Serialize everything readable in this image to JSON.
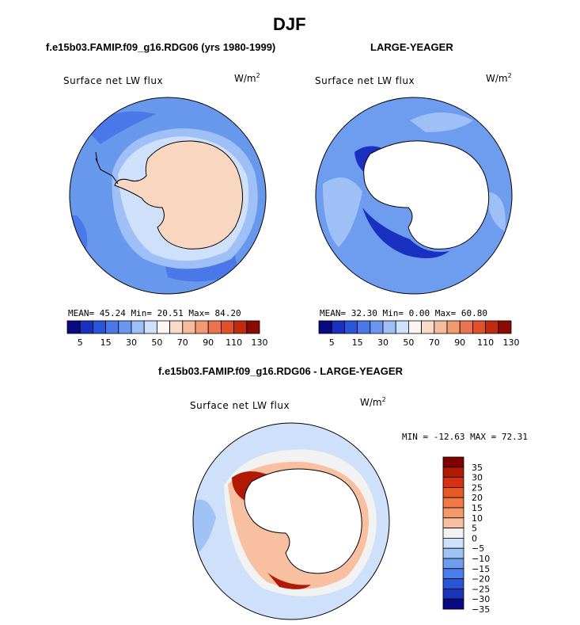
{
  "page": {
    "title": "DJF",
    "left_title": "f.e15b03.FAMIP.f09_g16.RDG06 (yrs 1980-1999)",
    "right_title": "LARGE-YEAGER",
    "diff_title": "f.e15b03.FAMIP.f09_g16.RDG06 - LARGE-YEAGER"
  },
  "panels": {
    "p1": {
      "variable": "Surface net LW flux",
      "units": "W/m",
      "units_exp": "2"
    },
    "p2": {
      "variable": "Surface net LW flux",
      "units": "W/m",
      "units_exp": "2"
    },
    "p3": {
      "variable": "Surface net LW flux",
      "units": "W/m",
      "units_exp": "2"
    }
  },
  "stats": {
    "p1": {
      "mean_label": "MEAN=",
      "mean": "45.24",
      "min_label": "Min=",
      "min": "20.51",
      "max_label": "Max=",
      "max": "84.20"
    },
    "p2": {
      "mean_label": "MEAN=",
      "mean": "32.30",
      "min_label": "Min=",
      "min": "0.00",
      "max_label": "Max=",
      "max": "60.80"
    },
    "p3": {
      "text": "MIN = -12.63 MAX =  72.31"
    }
  },
  "chart_data": [
    {
      "type": "heatmap",
      "projection": "south-polar-stereographic",
      "title": "f.e15b03.FAMIP.f09_g16.RDG06 (yrs 1980-1999)",
      "variable": "Surface net LW flux",
      "units": "W/m2",
      "mean": 45.24,
      "min": 20.51,
      "max": 84.2,
      "colorbar_levels": [
        5,
        10,
        15,
        20,
        30,
        40,
        50,
        60,
        70,
        80,
        90,
        100,
        110,
        120,
        130
      ],
      "colorbar_tick_labels": [
        "5",
        "15",
        "30",
        "50",
        "70",
        "90",
        "110",
        "130"
      ]
    },
    {
      "type": "heatmap",
      "projection": "south-polar-stereographic",
      "title": "LARGE-YEAGER",
      "variable": "Surface net LW flux",
      "units": "W/m2",
      "mean": 32.3,
      "min": 0.0,
      "max": 60.8,
      "colorbar_levels": [
        5,
        10,
        15,
        20,
        30,
        40,
        50,
        60,
        70,
        80,
        90,
        100,
        110,
        120,
        130
      ],
      "colorbar_tick_labels": [
        "5",
        "15",
        "30",
        "50",
        "70",
        "90",
        "110",
        "130"
      ]
    },
    {
      "type": "heatmap",
      "projection": "south-polar-stereographic",
      "title": "f.e15b03.FAMIP.f09_g16.RDG06 - LARGE-YEAGER",
      "variable": "Surface net LW flux",
      "units": "W/m2",
      "min": -12.63,
      "max": 72.31,
      "colorbar_levels": [
        35,
        30,
        25,
        20,
        15,
        10,
        5,
        0,
        -5,
        -10,
        -15,
        -20,
        -25,
        -30,
        -35
      ],
      "colorbar_tick_labels": [
        "35",
        "30",
        "25",
        "20",
        "15",
        "10",
        "5",
        "0",
        "−5",
        "−10",
        "−15",
        "−20",
        "−25",
        "−30",
        "−35"
      ]
    }
  ],
  "colors": {
    "seq_scale": [
      "#0a0a80",
      "#1a30c0",
      "#2a55d8",
      "#4a78e8",
      "#6a98f0",
      "#9ec0f6",
      "#cfe0fa",
      "#fbf6f2",
      "#f8dcc8",
      "#f5bd9c",
      "#f29a72",
      "#ec744c",
      "#e0502a",
      "#c02a10",
      "#8a0a05"
    ],
    "div_scale": [
      "#800000",
      "#b01a05",
      "#d83010",
      "#e85a25",
      "#f07a45",
      "#f49a6a",
      "#f8c0a0",
      "#f2f2f2",
      "#cfe0fa",
      "#a0c2f5",
      "#6e9cef",
      "#4a7cea",
      "#2a55d8",
      "#1a35b8",
      "#0a0a80"
    ],
    "ocean_p1": "#6898ec",
    "land_p1": "#f9d6c0",
    "ocean_p2": "#6e9cef",
    "ocean_p3": "#cfe0fa",
    "land_white": "#ffffff"
  }
}
